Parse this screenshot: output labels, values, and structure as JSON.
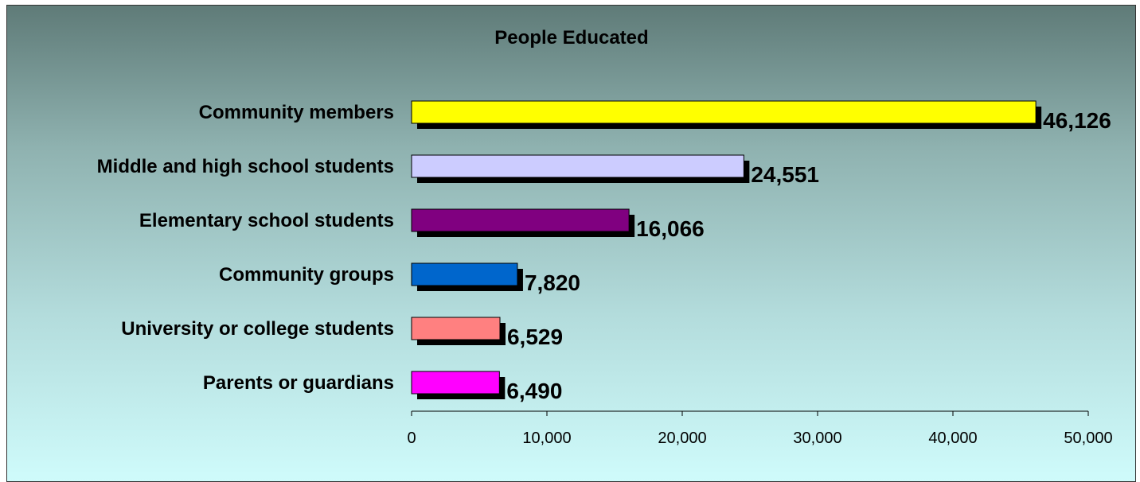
{
  "chart_data": {
    "type": "bar",
    "orientation": "horizontal",
    "title": "People Educated",
    "xlabel": "",
    "ylabel": "",
    "categories": [
      "Community members",
      "Middle and high school students",
      "Elementary school students",
      "Community groups",
      "University or college students",
      "Parents or guardians"
    ],
    "values": [
      46126,
      24551,
      16066,
      7820,
      6529,
      6490
    ],
    "value_labels": [
      "46,126",
      "24,551",
      "16,066",
      "7,820",
      "6,529",
      "6,490"
    ],
    "colors": [
      "#ffff00",
      "#ccccff",
      "#800080",
      "#0066cc",
      "#ff8080",
      "#ff00ff"
    ],
    "xlim": [
      0,
      50000
    ],
    "ticks": [
      0,
      10000,
      20000,
      30000,
      40000,
      50000
    ],
    "tick_labels": [
      "0",
      "10,000",
      "20,000",
      "30,000",
      "40,000",
      "50,000"
    ],
    "grid": false,
    "legend": "none"
  }
}
